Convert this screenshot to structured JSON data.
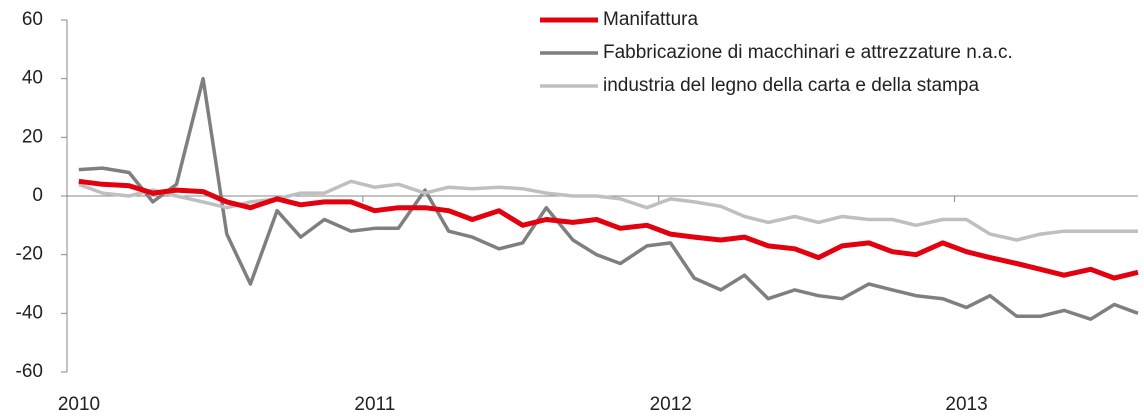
{
  "chart_data": {
    "type": "line",
    "x": [
      2010.04,
      2010.12,
      2010.21,
      2010.29,
      2010.37,
      2010.46,
      2010.54,
      2010.62,
      2010.71,
      2010.79,
      2010.87,
      2010.96,
      2011.04,
      2011.12,
      2011.21,
      2011.29,
      2011.37,
      2011.46,
      2011.54,
      2011.62,
      2011.71,
      2011.79,
      2011.87,
      2011.96,
      2012.04,
      2012.12,
      2012.21,
      2012.29,
      2012.37,
      2012.46,
      2012.54,
      2012.62,
      2012.71,
      2012.79,
      2012.87,
      2012.96,
      2013.04,
      2013.12,
      2013.21,
      2013.29,
      2013.37,
      2013.46,
      2013.54,
      2013.62
    ],
    "series": [
      {
        "name": "Manifattura",
        "color": "#e3000f",
        "values": [
          5,
          4,
          3.5,
          1,
          2,
          1.5,
          -2,
          -4,
          -1,
          -3,
          -2,
          -2,
          -5,
          -4,
          -4,
          -5,
          -8,
          -5,
          -10,
          -8,
          -9,
          -8,
          -11,
          -10,
          -13,
          -14,
          -15,
          -14,
          -17,
          -18,
          -21,
          -17,
          -16,
          -19,
          -20,
          -16,
          -19,
          -21,
          -23,
          -25,
          -27,
          -25,
          -28,
          -26
        ]
      },
      {
        "name": "Fabbricazione di macchinari e attrezzature n.a.c.",
        "color": "#7f7f7f",
        "values": [
          9,
          9.5,
          8,
          -2,
          4,
          40,
          -13,
          -30,
          -5,
          -14,
          -8,
          -12,
          -11,
          -11,
          2,
          -12,
          -14,
          -18,
          -16,
          -4,
          -15,
          -20,
          -23,
          -17,
          -16,
          -28,
          -32,
          -27,
          -35,
          -32,
          -34,
          -35,
          -30,
          -32,
          -34,
          -35,
          -38,
          -34,
          -41,
          -41,
          -39,
          -42,
          -37,
          -40
        ]
      },
      {
        "name": "industria del legno della carta e della stampa",
        "color": "#bfbfbf",
        "values": [
          4,
          1,
          0,
          2,
          0,
          -2,
          -4,
          -2,
          -1,
          1,
          1,
          5,
          3,
          4,
          1,
          3,
          2.5,
          3,
          2.5,
          1,
          0,
          0,
          -1,
          -4,
          -1,
          -2,
          -3.5,
          -7,
          -9,
          -7,
          -9,
          -7,
          -8,
          -8,
          -10,
          -8,
          -8,
          -13,
          -15,
          -13,
          -12,
          -12,
          -12,
          -12
        ]
      }
    ],
    "xlim": [
      2010,
      2013.62
    ],
    "xticks": [
      2010,
      2011,
      2012,
      2013
    ],
    "ylim": [
      -60,
      60
    ],
    "yticks": [
      -60,
      -40,
      -20,
      0,
      20,
      40,
      60
    ]
  }
}
